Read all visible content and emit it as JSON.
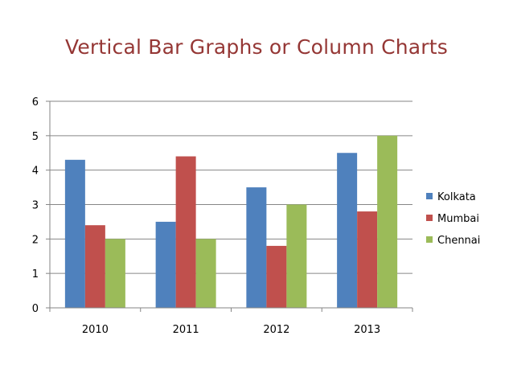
{
  "chart_data": {
    "type": "bar",
    "title": "Vertical Bar Graphs or Column Charts",
    "xlabel": "",
    "ylabel": "",
    "categories": [
      "2010",
      "2011",
      "2012",
      "2013"
    ],
    "series": [
      {
        "name": "Kolkata",
        "values": [
          4.3,
          2.5,
          3.5,
          4.5
        ],
        "color": "#4f81bd"
      },
      {
        "name": "Mumbai",
        "values": [
          2.4,
          4.4,
          1.8,
          2.8
        ],
        "color": "#c0504d"
      },
      {
        "name": "Chennai",
        "values": [
          2,
          2,
          3,
          5
        ],
        "color": "#9bbb59"
      }
    ],
    "ylim": [
      0,
      6
    ],
    "yticks": [
      "0",
      "1",
      "2",
      "3",
      "4",
      "5",
      "6"
    ],
    "grid": true,
    "legend_position": "right"
  }
}
